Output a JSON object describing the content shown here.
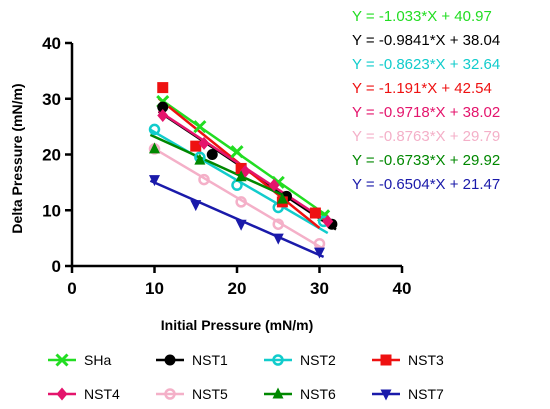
{
  "chart_data": {
    "type": "scatter",
    "xlabel": "Initial Pressure (mN/m)",
    "ylabel": "Delta Pressure (mN/m)",
    "xlim": [
      0,
      40
    ],
    "ylim": [
      0,
      40
    ],
    "xticks": [
      "0",
      "10",
      "20",
      "30",
      "40"
    ],
    "yticks": [
      "0",
      "10",
      "20",
      "30",
      "40"
    ],
    "grid": false,
    "legend_position": "bottom",
    "series": [
      {
        "name": "SHa",
        "color": "#22dd22",
        "marker": "x",
        "x": [
          11,
          15.5,
          20,
          25,
          30.5
        ],
        "y": [
          29.5,
          25,
          20.5,
          15,
          9
        ],
        "fit": {
          "slope": -1.033,
          "intercept": 40.97,
          "range": [
            10.5,
            31
          ]
        }
      },
      {
        "name": "NST1",
        "color": "#000000",
        "marker": "circle",
        "x": [
          11,
          17,
          26,
          31.5
        ],
        "y": [
          28.5,
          20,
          12.5,
          7.5
        ],
        "fit": {
          "slope": -0.9841,
          "intercept": 38.04,
          "range": [
            10.5,
            32
          ]
        }
      },
      {
        "name": "NST2",
        "color": "#11cccc",
        "marker": "circle-open",
        "x": [
          10,
          15.5,
          20,
          25,
          30.5
        ],
        "y": [
          24.5,
          19.5,
          14.5,
          10.5,
          8
        ],
        "fit": {
          "slope": -0.8623,
          "intercept": 32.64,
          "range": [
            9.5,
            31
          ]
        }
      },
      {
        "name": "NST3",
        "color": "#ee1111",
        "marker": "square",
        "x": [
          11,
          15,
          20.5,
          25.5,
          29.5
        ],
        "y": [
          32,
          21.5,
          17.5,
          11.5,
          9.5
        ],
        "fit": {
          "slope": -1.191,
          "intercept": 42.54,
          "range": [
            10.5,
            30
          ]
        }
      },
      {
        "name": "NST4",
        "color": "#e4146c",
        "marker": "diamond",
        "x": [
          11,
          16,
          21,
          24.5,
          31
        ],
        "y": [
          27,
          22,
          17,
          14.5,
          8
        ],
        "fit": {
          "slope": -0.9718,
          "intercept": 38.02,
          "range": [
            10.5,
            31.5
          ]
        }
      },
      {
        "name": "NST5",
        "color": "#f4b0c8",
        "marker": "circle-open",
        "x": [
          10,
          16,
          20.5,
          25,
          30
        ],
        "y": [
          21,
          15.5,
          11.5,
          7.5,
          4
        ],
        "fit": {
          "slope": -0.8763,
          "intercept": 29.79,
          "range": [
            9.5,
            30.5
          ]
        }
      },
      {
        "name": "NST6",
        "color": "#008800",
        "marker": "triangle-up",
        "x": [
          10,
          15.5,
          20.5,
          25.5
        ],
        "y": [
          21,
          19,
          16,
          12
        ],
        "fit": {
          "slope": -0.6733,
          "intercept": 29.92,
          "range": [
            9.5,
            26
          ]
        }
      },
      {
        "name": "NST7",
        "color": "#1a1aaa",
        "marker": "triangle-down",
        "x": [
          10,
          15,
          20.5,
          25,
          30
        ],
        "y": [
          15.5,
          11,
          7.5,
          5,
          2.5
        ],
        "fit": {
          "slope": -0.6504,
          "intercept": 21.47,
          "range": [
            9.5,
            30.5
          ]
        }
      }
    ],
    "equations": [
      {
        "text": "Y = -1.033*X + 40.97",
        "color": "#22dd22"
      },
      {
        "text": "Y = -0.9841*X + 38.04",
        "color": "#000000"
      },
      {
        "text": "Y = -0.8623*X + 32.64",
        "color": "#11cccc"
      },
      {
        "text": "Y = -1.191*X + 42.54",
        "color": "#ee1111"
      },
      {
        "text": "Y = -0.9718*X + 38.02",
        "color": "#e4146c"
      },
      {
        "text": "Y = -0.8763*X + 29.79",
        "color": "#f4b0c8"
      },
      {
        "text": "Y = -0.6733*X + 29.92",
        "color": "#008800"
      },
      {
        "text": "Y = -0.6504*X + 21.47",
        "color": "#1a1aaa"
      }
    ]
  }
}
